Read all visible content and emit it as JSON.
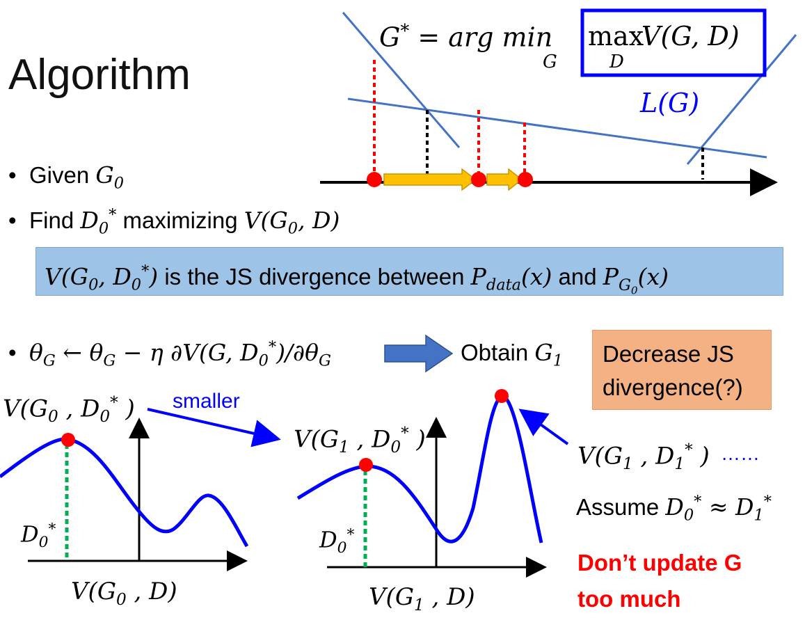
{
  "title": "Algorithm",
  "formula_top": {
    "lhs": "G",
    "lhs_sup": "*",
    "eq": " = arg min",
    "min_sub": "G",
    "max": "max",
    "max_sub": "D",
    "v": " V(G, D)"
  },
  "loss_label": "L(G)",
  "bullets": {
    "b1_text": "Given ",
    "b1_math": "G",
    "b1_sub": "0",
    "b2_text": "Find ",
    "b2_math": "D",
    "b2_sub": "0",
    "b2_sup": "*",
    "b2_mid": " maximizing ",
    "b2_tail": "V(G",
    "b2_tail_sub": "0",
    "b2_tail_end": ", D)",
    "b3_theta": "θ",
    "b3_theta_sub": "G",
    "b3_arrow": " ← ",
    "b3_rest": " − η ∂V(G, D",
    "b3_rest_sub": "0",
    "b3_rest_sup": "*",
    "b3_rest_end": ")/∂θ",
    "b3_end_sub": "G"
  },
  "js_box": {
    "pre": "V(G",
    "pre_sub": "0",
    "mid": ", D",
    "mid_sub": "0",
    "mid_sup": "*",
    "close": ")",
    "text1": " is the JS divergence between ",
    "pdata": "P",
    "pdata_sub": "data",
    "pdata_x": "(x)",
    "and": " and ",
    "pg": "P",
    "pg_sub": "G",
    "pg_subsub": "0",
    "pg_x": "(x)"
  },
  "obtain": {
    "text": "Obtain ",
    "math": "G",
    "sub": "1"
  },
  "decrease_box": "Decrease JS divergence(?)",
  "smaller": "smaller",
  "left_plot": {
    "peak_label": "V(G",
    "peak_label_sub": "0",
    "peak_label_mid": " , D",
    "peak_label_sub2": "0",
    "peak_label_sup": "*",
    "peak_label_end": " )",
    "d_label": "D",
    "d_sub": "0",
    "d_sup": "*",
    "xlabel": "V(G",
    "xlabel_sub": "0",
    "xlabel_end": " , D)"
  },
  "middle_plot": {
    "peak_label": "V(G",
    "peak_label_sub": "1",
    "peak_label_mid": " , D",
    "peak_label_sub2": "0",
    "peak_label_sup": "*",
    "peak_label_end": " )",
    "d_label": "D",
    "d_sub": "0",
    "d_sup": "*",
    "xlabel": "V(G",
    "xlabel_sub": "1",
    "xlabel_end": " , D)"
  },
  "right_label": {
    "v": "V(G",
    "v_sub": "1",
    "mid": " , D",
    "mid_sub": "1",
    "mid_sup": "*",
    "end": " )",
    "dots": "……"
  },
  "assume": {
    "text": "Assume ",
    "d0": "D",
    "d0_sub": "0",
    "d0_sup": "*",
    "approx": " ≈ ",
    "d1": "D",
    "d1_sub": "1",
    "d1_sup": "*"
  },
  "warning_line1": "Don’t update G",
  "warning_line2": "too much",
  "colors": {
    "blue_curve": "#0000ff",
    "line_blue": "#4472c4",
    "red": "#ff0000",
    "green": "#00b050",
    "arrow_yellow": "#ffc000",
    "box_blue": "#0000ff"
  }
}
